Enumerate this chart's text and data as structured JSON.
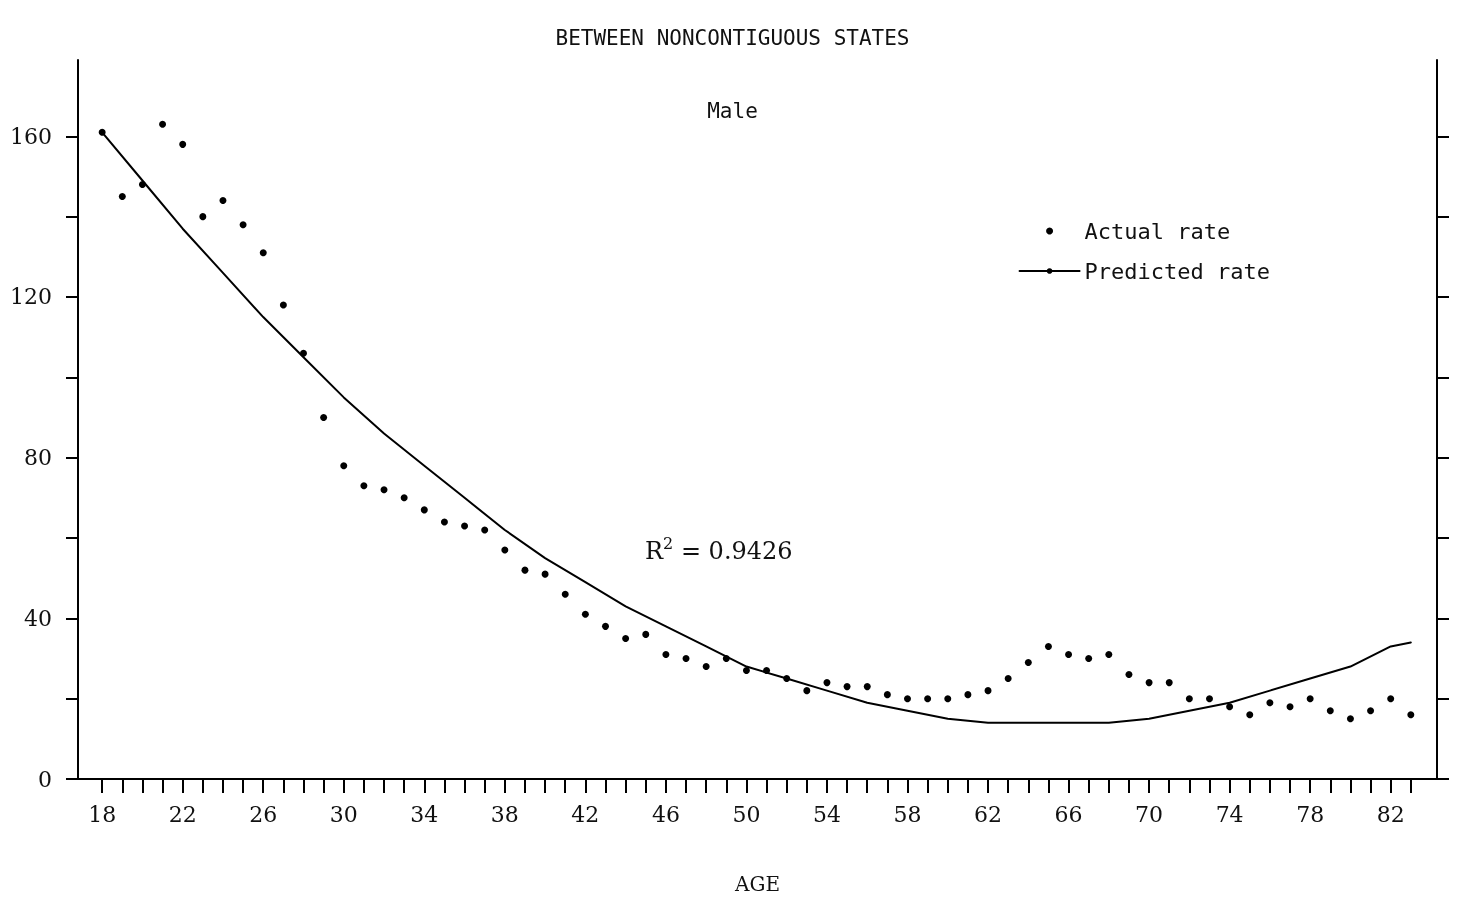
{
  "chart_data": {
    "type": "scatter",
    "title": "BETWEEN NONCONTIGUOUS STATES",
    "subtitle": "Male",
    "xlabel": "AGE",
    "annotations": [
      "R$^{2}$ = 0.9426"
    ],
    "xlim": [
      16.8,
      84.3
    ],
    "xticks": [
      18,
      {
        "value": 19,
        "label": null
      },
      {
        "value": 20,
        "label": null
      },
      {
        "value": 21,
        "label": null
      },
      22,
      {
        "value": 23,
        "label": null
      },
      {
        "value": 24,
        "label": null
      },
      {
        "value": 25,
        "label": null
      },
      26,
      {
        "value": 27,
        "label": null
      },
      {
        "value": 28,
        "label": null
      },
      {
        "value": 29,
        "label": null
      },
      30,
      {
        "value": 31,
        "label": null
      },
      {
        "value": 32,
        "label": null
      },
      {
        "value": 33,
        "label": null
      },
      34,
      {
        "value": 35,
        "label": null
      },
      {
        "value": 36,
        "label": null
      },
      {
        "value": 37,
        "label": null
      },
      38,
      {
        "value": 39,
        "label": null
      },
      {
        "value": 40,
        "label": null
      },
      {
        "value": 41,
        "label": null
      },
      42,
      {
        "value": 43,
        "label": null
      },
      {
        "value": 44,
        "label": null
      },
      {
        "value": 45,
        "label": null
      },
      46,
      {
        "value": 47,
        "label": null
      },
      {
        "value": 48,
        "label": null
      },
      {
        "value": 49,
        "label": null
      },
      50,
      {
        "value": 51,
        "label": null
      },
      {
        "value": 52,
        "label": null
      },
      {
        "value": 53,
        "label": null
      },
      54,
      {
        "value": 55,
        "label": null
      },
      {
        "value": 56,
        "label": null
      },
      {
        "value": 57,
        "label": null
      },
      58,
      {
        "value": 59,
        "label": null
      },
      {
        "value": 60,
        "label": null
      },
      {
        "value": 61,
        "label": null
      },
      62,
      {
        "value": 63,
        "label": null
      },
      {
        "value": 64,
        "label": null
      },
      {
        "value": 65,
        "label": null
      },
      66,
      {
        "value": 67,
        "label": null
      },
      {
        "value": 68,
        "label": null
      },
      {
        "value": 69,
        "label": null
      },
      70,
      {
        "value": 71,
        "label": null
      },
      {
        "value": 72,
        "label": null
      },
      {
        "value": 73,
        "label": null
      },
      74,
      {
        "value": 75,
        "label": null
      },
      {
        "value": 76,
        "label": null
      },
      {
        "value": 77,
        "label": null
      },
      78,
      {
        "value": 79,
        "label": null
      },
      {
        "value": 80,
        "label": null
      },
      {
        "value": 81,
        "label": null
      },
      82,
      {
        "value": 83,
        "label": null
      }
    ],
    "ylim": [
      0,
      179
    ],
    "yticks": [
      0,
      {
        "value": 20,
        "label": null
      },
      40,
      {
        "value": 60,
        "label": null
      },
      80,
      {
        "value": 100,
        "label": null
      },
      120,
      {
        "value": 140,
        "label": null
      },
      160
    ],
    "grid": false,
    "legend": "top right",
    "series": [
      {
        "name": "Actual rate",
        "type": "scatter",
        "marker": "circle",
        "color": "#000000",
        "x": [
          18,
          19,
          20,
          21,
          22,
          23,
          24,
          25,
          26,
          27,
          28,
          29,
          30,
          31,
          32,
          33,
          34,
          35,
          36,
          37,
          38,
          39,
          40,
          41,
          42,
          43,
          44,
          45,
          46,
          47,
          48,
          49,
          50,
          51,
          52,
          53,
          54,
          55,
          56,
          57,
          58,
          59,
          60,
          61,
          62,
          63,
          64,
          65,
          66,
          67,
          68,
          69,
          70,
          71,
          72,
          73,
          74,
          75,
          76,
          77,
          78,
          79,
          80,
          81,
          82,
          83
        ],
        "values": [
          161,
          145,
          148,
          163,
          158,
          140,
          144,
          138,
          131,
          118,
          106,
          90,
          78,
          73,
          72,
          70,
          67,
          64,
          63,
          62,
          57,
          52,
          51,
          46,
          41,
          38,
          35,
          36,
          31,
          30,
          28,
          30,
          27,
          27,
          25,
          22,
          24,
          23,
          23,
          21,
          20,
          20,
          20,
          21,
          22,
          25,
          29,
          33,
          31,
          30,
          31,
          26,
          24,
          24,
          20,
          20,
          18,
          16,
          19,
          18,
          20,
          17,
          15,
          17,
          20,
          16
        ]
      },
      {
        "name": "Predicted rate",
        "type": "line",
        "marker": "none",
        "line_style": "solid",
        "color": "#000000",
        "x": [
          18,
          20,
          22,
          24,
          26,
          28,
          30,
          32,
          34,
          36,
          38,
          40,
          42,
          44,
          46,
          48,
          50,
          52,
          54,
          56,
          58,
          60,
          62,
          64,
          66,
          68,
          70,
          72,
          74,
          76,
          78,
          80,
          82,
          83
        ],
        "values": [
          161,
          149,
          137,
          126,
          115,
          105,
          95,
          86,
          78,
          70,
          62,
          55,
          49,
          43,
          38,
          33,
          28,
          25,
          22,
          19,
          17,
          15,
          14,
          14,
          14,
          14,
          15,
          17,
          19,
          22,
          25,
          28,
          33,
          34
        ]
      }
    ]
  }
}
